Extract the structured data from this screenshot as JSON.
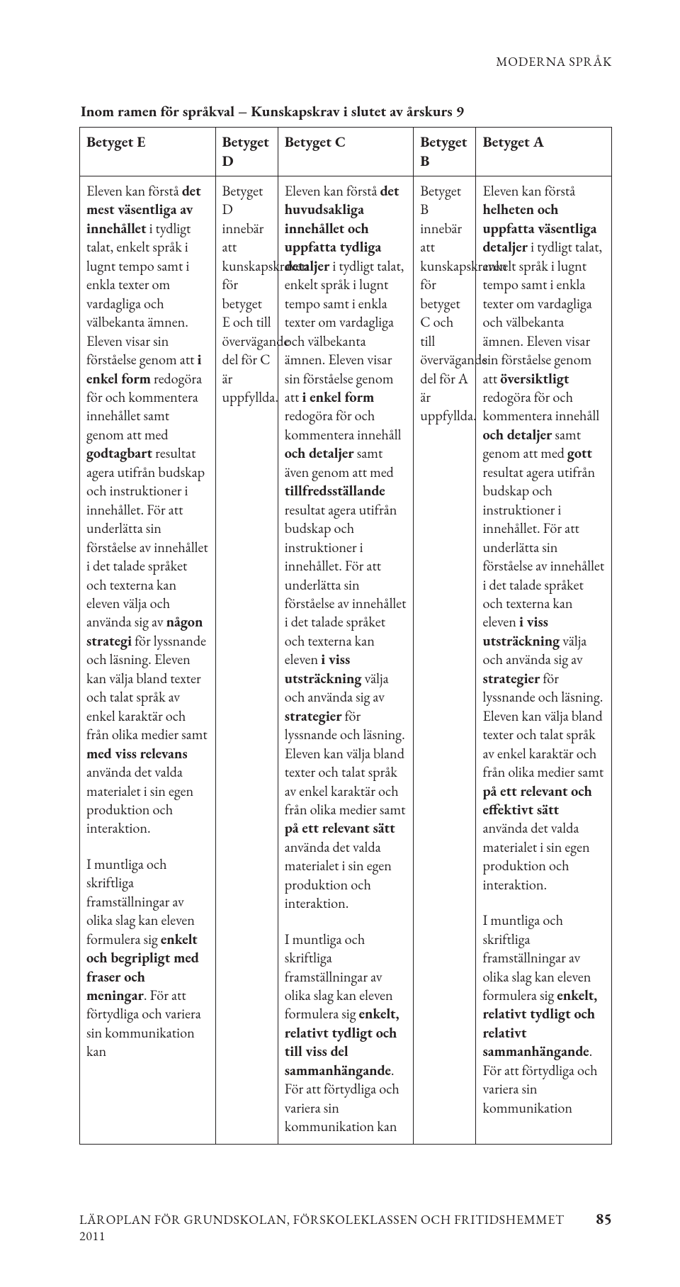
{
  "running_header": "MODERNA SPRÅK",
  "table_caption": "Inom ramen för språkval – Kunskapskrav i slutet av årskurs 9",
  "columns": [
    "Betyget E",
    "Betyget D",
    "Betyget C",
    "Betyget B",
    "Betyget A"
  ],
  "row1": {
    "E": {
      "segments": [
        {
          "t": "Eleven kan förstå ",
          "b": false
        },
        {
          "t": "det mest väsentliga av innehållet",
          "b": true
        },
        {
          "t": " i tydligt talat, enkelt språk i lugnt tempo samt i enkla texter om vardagliga och välbekanta ämnen. Eleven visar sin förståelse genom att ",
          "b": false
        },
        {
          "t": "i enkel form",
          "b": true
        },
        {
          "t": " redogöra för och kommentera innehållet samt genom att med ",
          "b": false
        },
        {
          "t": "godtagbart",
          "b": true
        },
        {
          "t": " resultat agera utifrån budskap och instruktioner i innehållet. För att underlätta sin förståelse av innehållet i det talade språket och texterna kan eleven välja och använda sig av ",
          "b": false
        },
        {
          "t": "någon strategi",
          "b": true
        },
        {
          "t": " för lyssnande och läsning. Eleven kan välja bland texter och talat språk av enkel karaktär och från olika medier samt ",
          "b": false
        },
        {
          "t": "med viss relevans",
          "b": true
        },
        {
          "t": " använda det valda materialet i sin egen produktion och interaktion.",
          "b": false
        }
      ]
    },
    "D": {
      "segments": [
        {
          "t": "Betyget D innebär att kunskapskraven för betyget E och till övervägande del för C är uppfyllda.",
          "b": false
        }
      ]
    },
    "C": {
      "segments": [
        {
          "t": "Eleven kan förstå ",
          "b": false
        },
        {
          "t": "det huvudsakliga innehållet och uppfatta tydliga detaljer",
          "b": true
        },
        {
          "t": " i tydligt talat, enkelt språk i lugnt tempo samt i enkla texter om vardagliga och välbekanta ämnen. Eleven visar sin förståelse genom att ",
          "b": false
        },
        {
          "t": "i enkel form",
          "b": true
        },
        {
          "t": " redogöra för och kommentera innehåll ",
          "b": false
        },
        {
          "t": "och detaljer",
          "b": true
        },
        {
          "t": " samt även genom att med ",
          "b": false
        },
        {
          "t": "tillfredsställande",
          "b": true
        },
        {
          "t": " resultat agera utifrån budskap och instruktioner i innehållet. För att underlätta sin förståelse av innehållet i det talade språket och texterna kan eleven ",
          "b": false
        },
        {
          "t": "i viss utsträckning",
          "b": true
        },
        {
          "t": " välja och använda sig av ",
          "b": false
        },
        {
          "t": "strategier",
          "b": true
        },
        {
          "t": " för lyssnande och läsning. Eleven kan välja bland texter och talat språk av enkel karaktär och från olika medier samt ",
          "b": false
        },
        {
          "t": "på ett relevant sätt",
          "b": true
        },
        {
          "t": " använda det valda materialet i sin egen produktion och interaktion.",
          "b": false
        }
      ]
    },
    "B": {
      "segments": [
        {
          "t": "Betyget B innebär att kunskapskraven för betyget C och till övervägande del för A är uppfyllda.",
          "b": false
        }
      ]
    },
    "A": {
      "segments": [
        {
          "t": "Eleven kan förstå ",
          "b": false
        },
        {
          "t": "helheten och uppfatta väsentliga detaljer",
          "b": true
        },
        {
          "t": " i tydligt talat, enkelt språk i lugnt tempo samt i enkla texter om vardagliga och välbekanta ämnen. Eleven visar sin förståelse genom att ",
          "b": false
        },
        {
          "t": "översiktligt",
          "b": true
        },
        {
          "t": " redogöra för och kommentera innehåll ",
          "b": false
        },
        {
          "t": "och detaljer",
          "b": true
        },
        {
          "t": " samt genom att med ",
          "b": false
        },
        {
          "t": "gott",
          "b": true
        },
        {
          "t": " resultat agera utifrån budskap och instruktioner i innehållet. För att underlätta sin förståelse av innehållet i det talade språket och texterna kan eleven ",
          "b": false
        },
        {
          "t": "i viss utsträckning",
          "b": true
        },
        {
          "t": " välja och använda sig av ",
          "b": false
        },
        {
          "t": "strategier",
          "b": true
        },
        {
          "t": " för lyssnande och läsning. Eleven kan välja bland texter och talat språk av enkel karaktär och från olika medier samt ",
          "b": false
        },
        {
          "t": "på ett relevant och effektivt sätt",
          "b": true
        },
        {
          "t": " använda det valda materialet i sin egen produktion och interaktion.",
          "b": false
        }
      ]
    }
  },
  "row2": {
    "E": {
      "segments": [
        {
          "t": "I muntliga och skriftliga framställningar av olika slag kan eleven formulera sig ",
          "b": false
        },
        {
          "t": "enkelt och begripligt med fraser och meningar",
          "b": true
        },
        {
          "t": ". För att förtydliga och variera sin kommunikation kan",
          "b": false
        }
      ]
    },
    "C": {
      "segments": [
        {
          "t": "I muntliga och skriftliga framställningar av olika slag kan eleven formulera sig ",
          "b": false
        },
        {
          "t": "enkelt, relativt tydligt och till viss del sammanhängande",
          "b": true
        },
        {
          "t": ". För att förtydliga och variera sin kommunikation kan",
          "b": false
        }
      ]
    },
    "A": {
      "segments": [
        {
          "t": "I muntliga och skriftliga framställningar av olika slag kan eleven formulera sig ",
          "b": false
        },
        {
          "t": "enkelt, relativt tydligt och relativt sammanhängande",
          "b": true
        },
        {
          "t": ". För att förtydliga och variera sin kommunikation",
          "b": false
        }
      ]
    }
  },
  "footer_text": "LÄROPLAN FÖR GRUNDSKOLAN, FÖRSKOLEKLASSEN OCH FRITIDSHEMMET 2011",
  "page_number": "85"
}
